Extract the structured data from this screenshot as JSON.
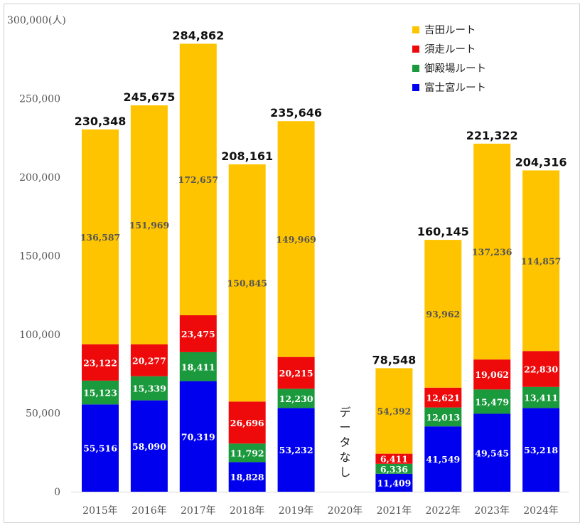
{
  "chart_data": {
    "type": "bar",
    "stacked": true,
    "unit": "(人)",
    "categories": [
      "2015年",
      "2016年",
      "2017年",
      "2018年",
      "2019年",
      "2020年",
      "2021年",
      "2022年",
      "2023年",
      "2024年"
    ],
    "series": [
      {
        "name": "富士宮ルート",
        "color": "#0000ee",
        "label_color": "#ffffff",
        "values": [
          55516,
          58090,
          70319,
          18828,
          53232,
          null,
          11409,
          41549,
          49545,
          53218
        ],
        "labels": [
          "55,516",
          "58,090",
          "70,319",
          "18,828",
          "53,232",
          "",
          "11,409",
          "41,549",
          "49,545",
          "53,218"
        ]
      },
      {
        "name": "御殿場ルート",
        "color": "#1a9a3c",
        "label_color": "#ffffff",
        "values": [
          15123,
          15339,
          18411,
          11792,
          12230,
          null,
          6336,
          12013,
          15479,
          13411
        ],
        "labels": [
          "15,123",
          "15,339",
          "18,411",
          "11,792",
          "12,230",
          "",
          "6,336",
          "12,013",
          "15,479",
          "13,411"
        ]
      },
      {
        "name": "須走ルート",
        "color": "#ee0a0a",
        "label_color": "#ffffff",
        "values": [
          23122,
          20277,
          23475,
          26696,
          20215,
          null,
          6411,
          12621,
          19062,
          22830
        ],
        "labels": [
          "23,122",
          "20,277",
          "23,475",
          "26,696",
          "20,215",
          "",
          "6,411",
          "12,621",
          "19,062",
          "22,830"
        ]
      },
      {
        "name": "吉田ルート",
        "color": "#ffc400",
        "label_color": "#555555",
        "values": [
          136587,
          151969,
          172657,
          150845,
          149969,
          null,
          54392,
          93962,
          137236,
          114857
        ],
        "labels": [
          "136,587",
          "151,969",
          "172,657",
          "150,845",
          "149,969",
          "",
          "54,392",
          "93,962",
          "137,236",
          "114,857"
        ]
      }
    ],
    "totals": [
      230348,
      245675,
      284862,
      208161,
      235646,
      null,
      78548,
      160145,
      221322,
      204316
    ],
    "total_labels": [
      "230,348",
      "245,675",
      "284,862",
      "208,161",
      "235,646",
      "",
      "78,548",
      "160,145",
      "221,322",
      "204,316"
    ],
    "yticks": [
      0,
      50000,
      100000,
      150000,
      200000,
      250000,
      300000
    ],
    "ytick_labels": [
      "0",
      "50,000",
      "100,000",
      "150,000",
      "200,000",
      "250,000",
      "300,000"
    ],
    "ylim": [
      0,
      300000
    ],
    "no_data_note": {
      "category": "2020年",
      "lines": [
        "デ",
        "ー",
        "タ",
        "な",
        "し"
      ]
    },
    "legend": [
      "吉田ルート",
      "須走ルート",
      "御殿場ルート",
      "富士宮ルート"
    ],
    "legend_position": "top-right",
    "grid": false
  }
}
